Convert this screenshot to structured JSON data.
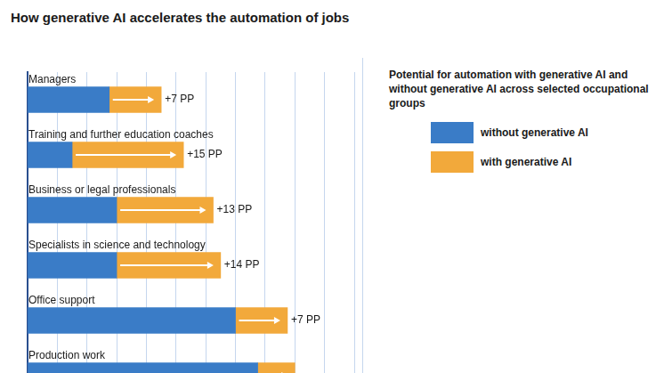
{
  "chart_data": {
    "type": "bar",
    "title": "How generative AI accelerates the automation of jobs",
    "subtitle": "Potential for automation with generative AI and without generative AI across selected occupational groups",
    "categories": [
      "Managers",
      "Training and further education coaches",
      "Business or legal professionals",
      "Specialists in science and technology",
      "Office support",
      "Production work"
    ],
    "series": [
      {
        "name": "without generative AI",
        "color": "#3a7cc7",
        "values": [
          11,
          6,
          12,
          12,
          28,
          31
        ]
      },
      {
        "name": "with generative AI",
        "color": "#f2a93b",
        "values": [
          7,
          15,
          13,
          14,
          7,
          5
        ],
        "value_labels": [
          "+7 PP",
          "+15 PP",
          "+13 PP",
          "+14 PP",
          "+7 PP",
          null
        ]
      }
    ],
    "orientation": "horizontal",
    "stacked": true,
    "xlim": [
      0,
      44
    ],
    "xticks": [
      0,
      4,
      8,
      12,
      16,
      20,
      24,
      28,
      32,
      36,
      40,
      44
    ],
    "grid": true,
    "tick_labels": false,
    "legend": "right",
    "data_labels": true
  }
}
